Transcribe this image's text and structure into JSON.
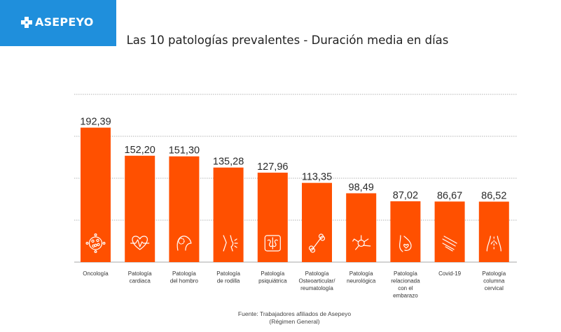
{
  "brand": {
    "name": "ASEPEYO",
    "color": "#1f8fdc"
  },
  "chart_data": {
    "type": "bar",
    "title": "Las 10 patologías prevalentes - Duración media en días",
    "categories": [
      "Oncología",
      "Patología cardiaca",
      "Patología del hombro",
      "Patología de rodilla",
      "Patología psiquiátrica",
      "Patología Osteoarticular/ reumatología",
      "Patología neurológica",
      "Patología relacionada con el embarazo",
      "Covid-19",
      "Patología columna cervical"
    ],
    "category_lines": [
      [
        "Oncología"
      ],
      [
        "Patología",
        "cardiaca"
      ],
      [
        "Patología",
        "del hombro"
      ],
      [
        "Patología",
        "de rodilla"
      ],
      [
        "Patología",
        "psiquiátrica"
      ],
      [
        "Patología",
        "Osteoarticular/",
        "reumatología"
      ],
      [
        "Patología",
        "neurológica"
      ],
      [
        "Patología",
        "relacionada",
        "con el",
        "embarazo"
      ],
      [
        "Covid-19"
      ],
      [
        "Patología",
        "columna",
        "cervical"
      ]
    ],
    "values": [
      192.39,
      152.2,
      151.3,
      135.28,
      127.96,
      113.35,
      98.49,
      87.02,
      86.67,
      86.52
    ],
    "value_labels": [
      "192,39",
      "152,20",
      "151,30",
      "135,28",
      "127,96",
      "113,35",
      "98,49",
      "87,02",
      "86,67",
      "86,52"
    ],
    "icons": [
      "cancer-cell-icon",
      "heart-pulse-icon",
      "shoulder-icon",
      "knee-icon",
      "brain-icon",
      "bone-icon",
      "neuron-icon",
      "pregnancy-icon",
      "virus-icon",
      "neck-spine-icon"
    ],
    "bar_color": "#ff5000",
    "ylim": [
      0,
      240
    ],
    "grid": true,
    "xlabel": "",
    "ylabel": ""
  },
  "source": {
    "line1": "Fuente: Trabajadores afiliados de Asepeyo",
    "line2": "(Régimen General)"
  }
}
